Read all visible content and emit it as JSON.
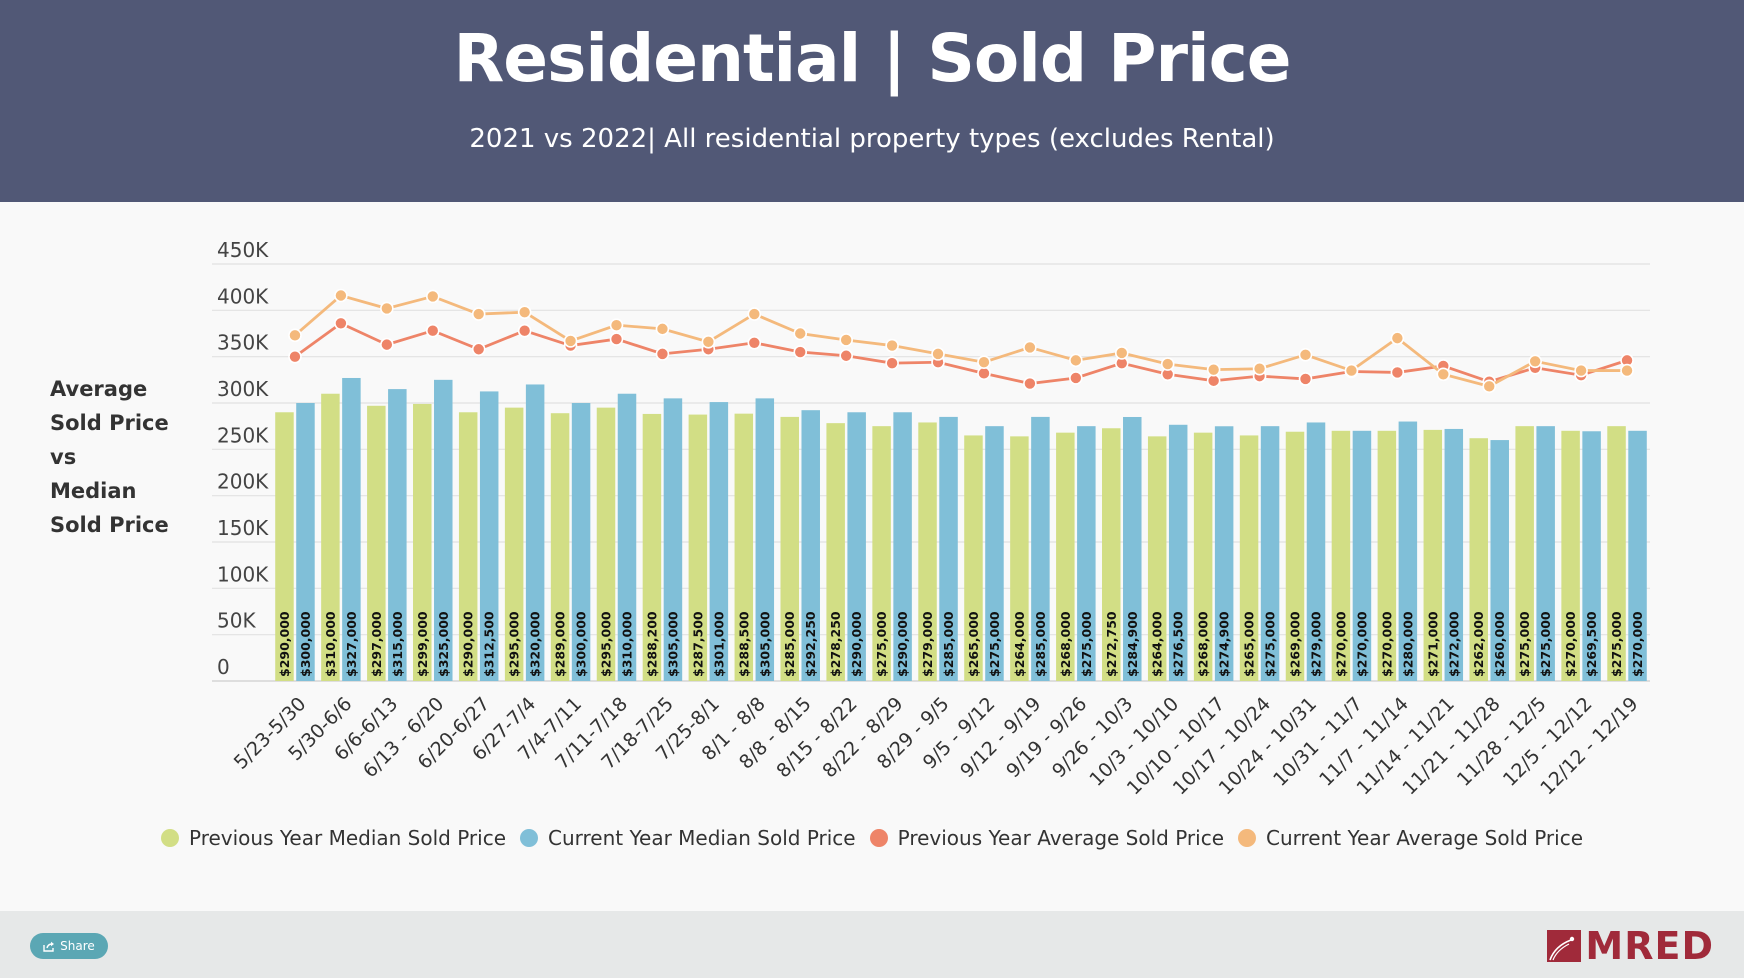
{
  "header": {
    "title": "Residential | Sold Price",
    "subtitle": "2021 vs 2022| All residential property types (excludes Rental)"
  },
  "side_label": [
    "Average",
    "Sold Price",
    "vs",
    "Median",
    "Sold Price"
  ],
  "footer": {
    "share_label": "Share",
    "logo_text": "MRED"
  },
  "colors": {
    "header_bg": "#515876",
    "prev_median": "#d2de85",
    "curr_median": "#80bfd8",
    "prev_avg": "#ee8468",
    "curr_avg": "#f4b97c",
    "brand": "#a02a3a",
    "share_button": "#5ba7b4"
  },
  "chart_data": {
    "type": "bar",
    "title": "Residential | Sold Price",
    "subtitle": "2021 vs 2022| All residential property types (excludes Rental)",
    "xlabel": "",
    "ylabel": "Average Sold Price vs Median Sold Price",
    "ylim": [
      0,
      450000
    ],
    "yticks": [
      0,
      50000,
      100000,
      150000,
      200000,
      250000,
      300000,
      350000,
      400000,
      450000
    ],
    "ytick_labels": [
      "0",
      "50K",
      "100K",
      "150K",
      "200K",
      "250K",
      "300K",
      "350K",
      "400K",
      "450K"
    ],
    "grid": true,
    "legend_position": "bottom",
    "categories": [
      "5/23-5/30",
      "5/30-6/6",
      "6/6-6/13",
      "6/13 - 6/20",
      "6/20-6/27",
      "6/27-7/4",
      "7/4-7/11",
      "7/11-7/18",
      "7/18-7/25",
      "7/25-8/1",
      "8/1 - 8/8",
      "8/8 - 8/15",
      "8/15 - 8/22",
      "8/22 - 8/29",
      "8/29 - 9/5",
      "9/5 - 9/12",
      "9/12 - 9/19",
      "9/19 - 9/26",
      "9/26 - 10/3",
      "10/3 - 10/10",
      "10/10 - 10/17",
      "10/17 - 10/24",
      "10/24 - 10/31",
      "10/31 - 11/7",
      "11/7 - 11/14",
      "11/14 - 11/21",
      "11/21 - 11/28",
      "11/28 - 12/5",
      "12/5 - 12/12",
      "12/12 - 12/19"
    ],
    "series": [
      {
        "name": "Previous Year Median Sold Price",
        "kind": "bar",
        "color": "#d2de85",
        "values": [
          290000,
          310000,
          297000,
          299000,
          290000,
          295000,
          289000,
          295000,
          288200,
          287500,
          288500,
          285000,
          278250,
          275000,
          279000,
          265000,
          264000,
          268000,
          272750,
          264000,
          268000,
          265000,
          269000,
          270000,
          270000,
          271000,
          262000,
          275000,
          270000,
          275000
        ],
        "labels": [
          "$290,000",
          "$310,000",
          "$297,000",
          "$299,000",
          "$290,000",
          "$295,000",
          "$289,000",
          "$295,000",
          "$288,200",
          "$287,500",
          "$288,500",
          "$285,000",
          "$278,250",
          "$275,000",
          "$279,000",
          "$265,000",
          "$264,000",
          "$268,000",
          "$272,750",
          "$264,000",
          "$268,000",
          "$265,000",
          "$269,000",
          "$270,000",
          "$270,000",
          "$271,000",
          "$262,000",
          "$275,000",
          "$270,000",
          "$275,000"
        ]
      },
      {
        "name": "Current Year Median Sold Price",
        "kind": "bar",
        "color": "#80bfd8",
        "values": [
          300000,
          327000,
          315000,
          325000,
          312500,
          320000,
          300000,
          310000,
          305000,
          301000,
          305000,
          292250,
          290000,
          290000,
          285000,
          275000,
          285000,
          275000,
          284900,
          276500,
          274900,
          275000,
          279000,
          270000,
          280000,
          272000,
          260000,
          275000,
          269500,
          270000
        ],
        "labels": [
          "$300,000",
          "$327,000",
          "$315,000",
          "$325,000",
          "$312,500",
          "$320,000",
          "$300,000",
          "$310,000",
          "$305,000",
          "$301,000",
          "$305,000",
          "$292,250",
          "$290,000",
          "$290,000",
          "$285,000",
          "$275,000",
          "$285,000",
          "$275,000",
          "$284,900",
          "$276,500",
          "$274,900",
          "$275,000",
          "$279,000",
          "$270,000",
          "$280,000",
          "$272,000",
          "$260,000",
          "$275,000",
          "$269,500",
          "$270,000"
        ]
      },
      {
        "name": "Previous Year Average Sold Price",
        "kind": "line",
        "color": "#ee8468",
        "values": [
          350000,
          386000,
          363000,
          378000,
          358000,
          378000,
          362000,
          369000,
          353000,
          358000,
          365000,
          355000,
          351000,
          343000,
          344000,
          332000,
          321000,
          327000,
          343000,
          331000,
          324000,
          329000,
          326000,
          334000,
          333000,
          340000,
          323000,
          338000,
          330000,
          346000
        ]
      },
      {
        "name": "Current Year Average Sold Price",
        "kind": "line",
        "color": "#f4b97c",
        "values": [
          373000,
          416000,
          402000,
          415000,
          396000,
          398000,
          367000,
          384000,
          380000,
          366000,
          396000,
          375000,
          368000,
          362000,
          353000,
          344000,
          360000,
          346000,
          354000,
          342000,
          336000,
          337000,
          352000,
          335000,
          370000,
          331000,
          318000,
          345000,
          335000,
          335000
        ]
      }
    ]
  }
}
